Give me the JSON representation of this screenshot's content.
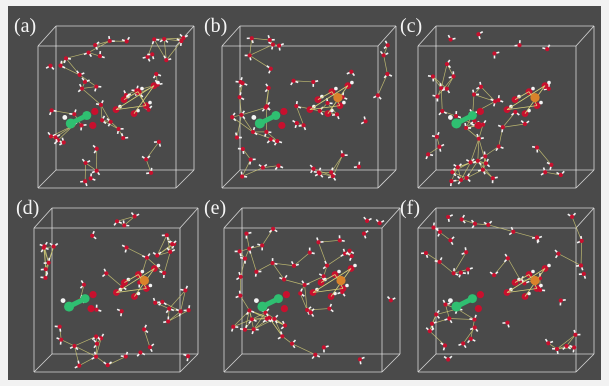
{
  "figure": {
    "panels": [
      {
        "label": "(a)",
        "variant": "a"
      },
      {
        "label": "(b)",
        "variant": "b"
      },
      {
        "label": "(c)",
        "variant": "c"
      },
      {
        "label": "(d)",
        "variant": "d"
      },
      {
        "label": "(e)",
        "variant": "e"
      },
      {
        "label": "(f)",
        "variant": "f"
      }
    ]
  },
  "colors": {
    "background": "#4a4a4a",
    "box_edges": "#e6e6e6",
    "hbond": "#d8d27a",
    "oxygen": "#c8102e",
    "hydrogen": "#f4f4f4",
    "carbon_green": "#2fbf71",
    "metal_orange": "#d9822b"
  }
}
